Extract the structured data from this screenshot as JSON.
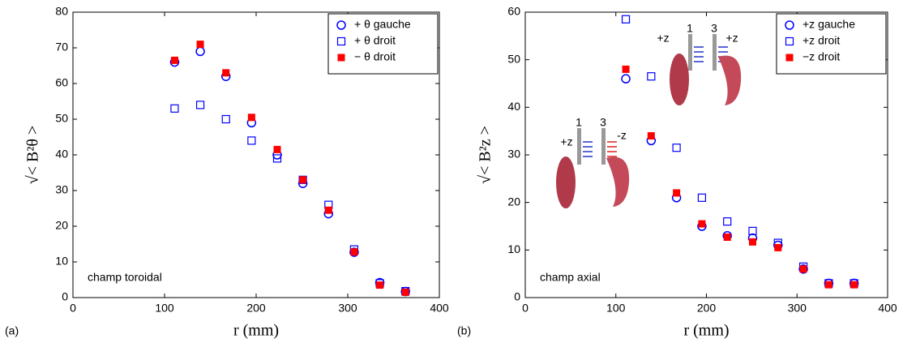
{
  "chart_data": [
    {
      "type": "scatter",
      "panel_label": "(a)",
      "xlabel": "r (mm)",
      "ylabel": "√< B²θ >",
      "annotation": "champ toroidal",
      "xlim": [
        0,
        400
      ],
      "xticks": [
        0,
        100,
        200,
        300,
        400
      ],
      "ylim": [
        0,
        80
      ],
      "yticks": [
        0,
        10,
        20,
        30,
        40,
        50,
        60,
        70,
        80
      ],
      "legend": "upper right",
      "x": [
        111,
        139,
        167,
        195,
        223,
        251,
        279,
        307,
        335,
        363
      ],
      "series": [
        {
          "name": "+ θ gauche",
          "color": "#0000ff",
          "marker": "circle-open",
          "values": [
            66,
            69,
            62,
            49,
            40,
            32,
            23.5,
            12.7,
            4.2,
            1.7
          ]
        },
        {
          "name": "+ θ droit",
          "color": "#0000ff",
          "marker": "square-open",
          "values": [
            53,
            54,
            50,
            44,
            39,
            33,
            26,
            13.5,
            4,
            1.8
          ]
        },
        {
          "name": "− θ droit",
          "color": "#ff0000",
          "marker": "square-filled",
          "values": [
            66.5,
            71,
            63,
            50.5,
            41.5,
            33,
            24.5,
            12.8,
            3.5,
            1.5
          ]
        }
      ]
    },
    {
      "type": "scatter",
      "panel_label": "(b)",
      "xlabel": "r (mm)",
      "ylabel": "√< B²z >",
      "annotation": "champ axial",
      "xlim": [
        0,
        400
      ],
      "xticks": [
        0,
        100,
        200,
        300,
        400
      ],
      "ylim": [
        0,
        60
      ],
      "yticks": [
        0,
        10,
        20,
        30,
        40,
        50,
        60
      ],
      "legend": "upper right",
      "inset_labels": [
        "+z",
        "1",
        "3",
        "+z",
        "+z",
        "1",
        "3",
        "-z"
      ],
      "x": [
        111,
        139,
        167,
        195,
        223,
        251,
        279,
        307,
        335,
        363
      ],
      "series": [
        {
          "name": "+z gauche",
          "color": "#0000ff",
          "marker": "circle-open",
          "values": [
            46,
            33,
            21,
            15,
            13,
            12.5,
            11,
            6,
            3,
            3
          ]
        },
        {
          "name": "+z droit",
          "color": "#0000ff",
          "marker": "square-open",
          "values": [
            58.5,
            46.5,
            31.5,
            21,
            16,
            14,
            11.5,
            6.5,
            3,
            3
          ]
        },
        {
          "name": "−z droit",
          "color": "#ff0000",
          "marker": "square-filled",
          "values": [
            48,
            34,
            22,
            15.5,
            12.7,
            11.7,
            10.5,
            6,
            2.7,
            2.7
          ]
        }
      ]
    }
  ]
}
